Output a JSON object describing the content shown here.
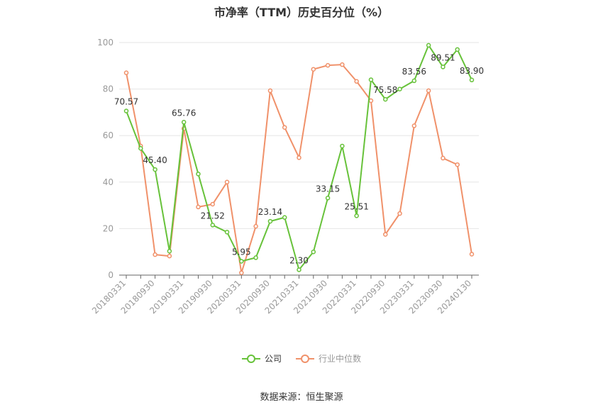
{
  "title": "市净率（TTM）历史百分位（%）",
  "source": "数据来源：恒生聚源",
  "colors": {
    "company": "#67c23a",
    "industry": "#f0916a",
    "grid": "#e6e6e6",
    "axis": "#666666",
    "tick_text": "#999999"
  },
  "chart_data": {
    "type": "line",
    "title": "市净率（TTM）历史百分位（%）",
    "xlabel": "",
    "ylabel": "",
    "ylim": [
      0,
      100
    ],
    "yticks": [
      0,
      20,
      40,
      60,
      80,
      100
    ],
    "x": [
      "20180331",
      "20180630",
      "20180930",
      "20181231",
      "20190331",
      "20190630",
      "20190930",
      "20191231",
      "20200331",
      "20200630",
      "20200930",
      "20201231",
      "20210331",
      "20210630",
      "20210930",
      "20211231",
      "20220331",
      "20220630",
      "20220930",
      "20221231",
      "20230331",
      "20230630",
      "20230930",
      "20231231",
      "20240130"
    ],
    "xtick_labels": [
      "20180331",
      "20180930",
      "20190331",
      "20190930",
      "20200331",
      "20200930",
      "20210331",
      "20210930",
      "20220331",
      "20220930",
      "20230331",
      "20230930",
      "20240130"
    ],
    "grid": "horizontal",
    "legend_position": "bottom",
    "series": [
      {
        "name": "公司",
        "values": [
          70.57,
          54.5,
          45.4,
          10.3,
          65.76,
          43.5,
          21.52,
          18.5,
          5.95,
          7.5,
          23.14,
          24.8,
          2.3,
          10.0,
          33.15,
          55.5,
          25.51,
          84.0,
          75.58,
          80.0,
          83.56,
          98.8,
          89.51,
          97.0,
          83.9
        ],
        "labels": {
          "0": "70.57",
          "2": "45.40",
          "4": "65.76",
          "6": "21.52",
          "8": "5.95",
          "10": "23.14",
          "12": "2.30",
          "14": "33.15",
          "16": "25.51",
          "18": "75.58",
          "20": "83.56",
          "22": "89.51",
          "24": "83.90"
        }
      },
      {
        "name": "行业中位数",
        "values": [
          87.0,
          55.5,
          8.8,
          8.2,
          63.0,
          29.3,
          30.5,
          40.0,
          1.0,
          21.0,
          79.3,
          63.5,
          50.5,
          88.5,
          90.2,
          90.5,
          83.3,
          75.0,
          17.5,
          26.5,
          64.2,
          79.3,
          50.3,
          47.5,
          9.0
        ]
      }
    ]
  }
}
